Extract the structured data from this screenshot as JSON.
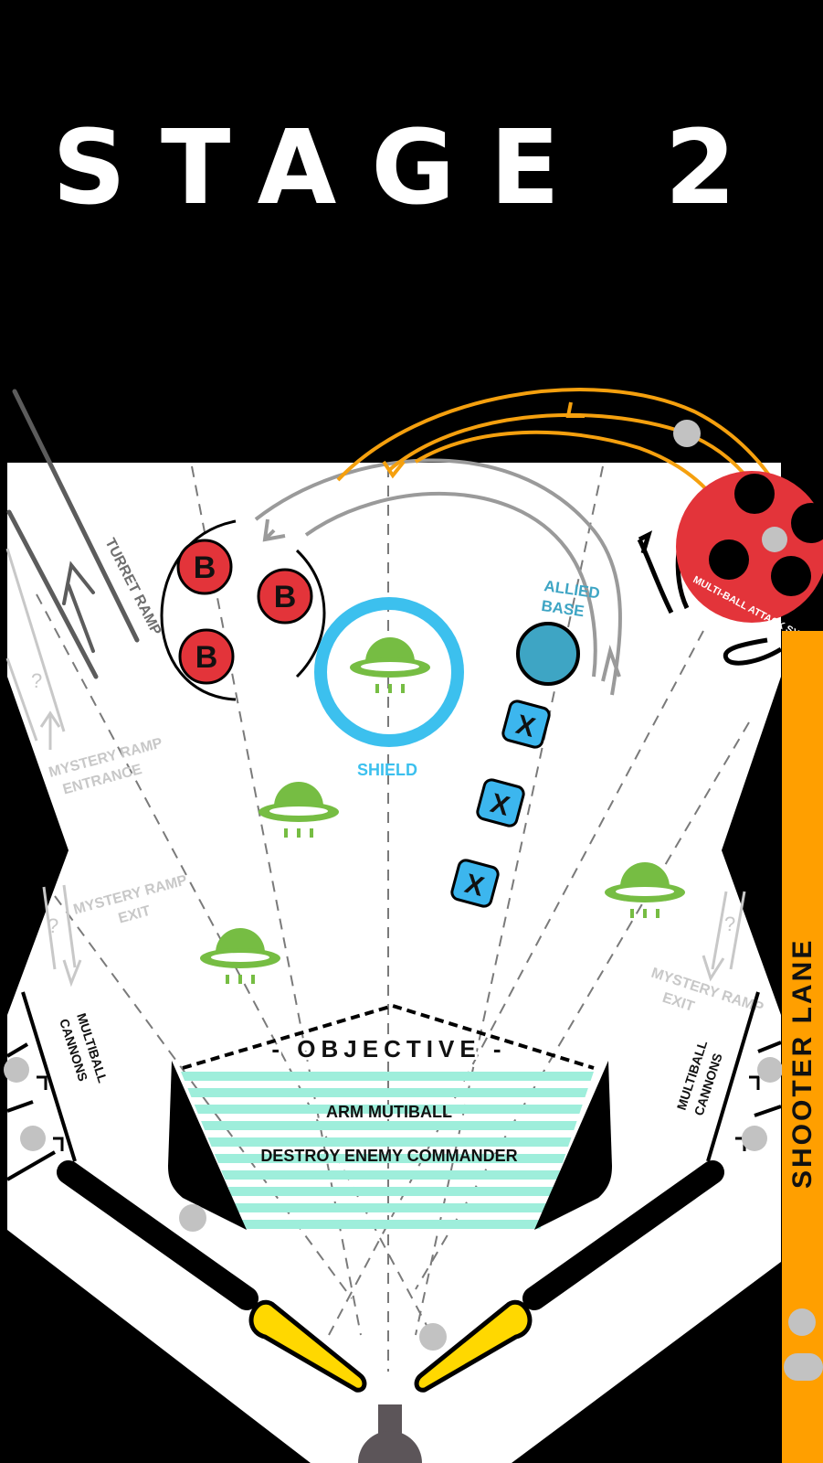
{
  "header": {
    "title": "STAGE 2"
  },
  "labels": {
    "turret_ramp": "TURRET RAMP",
    "allied_base_line1": "ALLIED",
    "allied_base_line2": "BASE",
    "shield": "SHIELD",
    "mystery_entrance_line1": "MYSTERY RAMP",
    "mystery_entrance_line2": "ENTRANCE",
    "mystery_exit_left_line1": "MYSTERY RAMP",
    "mystery_exit_left_line2": "EXIT",
    "mystery_exit_right_line1": "MYSTERY RAMP",
    "mystery_exit_right_line2": "EXIT",
    "multiball_left_line1": "MULTIBALL",
    "multiball_left_line2": "CANNONS",
    "multiball_right_line1": "MULTIBALL",
    "multiball_right_line2": "CANNONS",
    "shooter_lane": "SHOOTER LANE",
    "multiball_attack": "MULTI-BALL ATTACK SYSTEM",
    "question_mark": "?"
  },
  "bumpers": {
    "letter": "B"
  },
  "targets": {
    "letter": "X"
  },
  "objective": {
    "heading": "- OBJECTIVE -",
    "items": [
      "ARM MUTIBALL",
      "DESTROY ENEMY COMMANDER"
    ]
  },
  "colors": {
    "background": "#000000",
    "playfield": "#ffffff",
    "bumper": "#e3343a",
    "shield_ring": "#3cc0ee",
    "ufo": "#76bd43",
    "allied_base": "#3ea5c4",
    "target": "#3cb6ee",
    "ramp_orange": "#f5a00e",
    "shooter_lane": "#ff9f00",
    "objective_stripes": "#9eeedb",
    "flipper": "#ffd800",
    "ball": "#c2c2c2"
  }
}
